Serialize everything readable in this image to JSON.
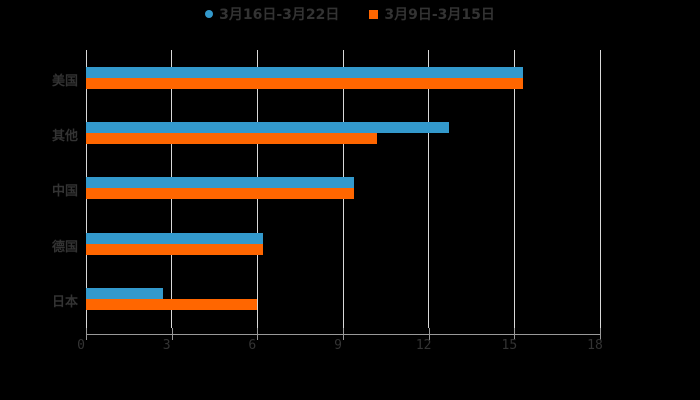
{
  "chart_data": {
    "type": "bar",
    "orientation": "horizontal",
    "title": "",
    "categories": [
      "美国",
      "其他",
      "中国",
      "德国",
      "日本"
    ],
    "series": [
      {
        "name": "3月16日-3月22日",
        "color": "#3399cc",
        "values": [
          15.3,
          12.7,
          9.4,
          6.2,
          2.7
        ]
      },
      {
        "name": "3月9日-3月15日",
        "color": "#ff6600",
        "values": [
          15.3,
          10.2,
          9.4,
          6.2,
          6.0
        ]
      }
    ],
    "xlabel": "",
    "ylabel": "",
    "xlim": [
      0,
      18
    ],
    "x_ticks": [
      "0",
      "3",
      "6",
      "9",
      "12",
      "15",
      "18"
    ],
    "grid": true,
    "legend_position": "top"
  },
  "legend": {
    "items": [
      {
        "label": "3月16日-3月22日",
        "color": "#3399cc",
        "marker": "circle"
      },
      {
        "label": "3月9日-3月15日",
        "color": "#ff6600",
        "marker": "square"
      }
    ]
  }
}
